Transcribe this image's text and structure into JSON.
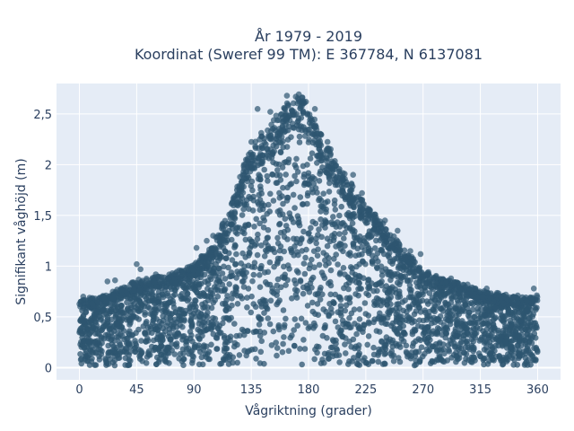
{
  "chart_data": {
    "type": "scatter",
    "title_line1": "År 1979 - 2019",
    "title_line2": "Koordinat (Sweref 99 TM): E 367784, N 6137081",
    "xlabel": "Vågriktning (grader)",
    "ylabel": "Signifikant våghöjd (m)",
    "xlim": [
      -18,
      378
    ],
    "ylim": [
      -0.12,
      2.8
    ],
    "x_ticks": [
      0,
      45,
      90,
      135,
      180,
      225,
      270,
      315,
      360
    ],
    "x_tick_labels": [
      "0",
      "45",
      "90",
      "135",
      "180",
      "225",
      "270",
      "315",
      "360"
    ],
    "y_ticks": [
      0,
      0.5,
      1,
      1.5,
      2,
      2.5
    ],
    "y_tick_labels": [
      "0",
      "0,5",
      "1",
      "1,5",
      "2",
      "2,5"
    ],
    "grid": true,
    "colors": {
      "marker": "#2e5570",
      "background": "#e5ecf6",
      "grid": "#ffffff"
    },
    "envelope": {
      "description": "upper bound of significant wave height by direction",
      "x": [
        0,
        20,
        45,
        70,
        90,
        105,
        120,
        135,
        150,
        165,
        175,
        180,
        190,
        205,
        225,
        245,
        270,
        290,
        315,
        340,
        360
      ],
      "y_max": [
        0.65,
        0.7,
        0.85,
        0.9,
        1.0,
        1.2,
        1.6,
        2.2,
        2.35,
        2.65,
        2.65,
        2.5,
        2.3,
        1.95,
        1.6,
        1.3,
        0.95,
        0.85,
        0.75,
        0.7,
        0.7
      ],
      "y_min": 0.02
    },
    "outliers": [
      {
        "x": 163,
        "y": 2.68
      },
      {
        "x": 170,
        "y": 2.67
      },
      {
        "x": 175,
        "y": 2.66
      },
      {
        "x": 178,
        "y": 2.62
      },
      {
        "x": 150,
        "y": 2.52
      },
      {
        "x": 140,
        "y": 2.55
      },
      {
        "x": 185,
        "y": 2.55
      },
      {
        "x": 165,
        "y": 2.48
      },
      {
        "x": 45,
        "y": 1.02
      },
      {
        "x": 48,
        "y": 0.97
      },
      {
        "x": 22,
        "y": 0.85
      },
      {
        "x": 28,
        "y": 0.86
      },
      {
        "x": 60,
        "y": 0.92
      },
      {
        "x": 73,
        "y": 0.93
      },
      {
        "x": 92,
        "y": 1.18
      },
      {
        "x": 100,
        "y": 1.25
      },
      {
        "x": 105,
        "y": 1.3
      },
      {
        "x": 215,
        "y": 1.9
      },
      {
        "x": 222,
        "y": 1.72
      },
      {
        "x": 240,
        "y": 1.45
      },
      {
        "x": 250,
        "y": 1.35
      },
      {
        "x": 260,
        "y": 1.15
      },
      {
        "x": 268,
        "y": 1.12
      },
      {
        "x": 292,
        "y": 0.88
      },
      {
        "x": 305,
        "y": 0.82
      },
      {
        "x": 320,
        "y": 0.78
      },
      {
        "x": 335,
        "y": 0.72
      },
      {
        "x": 357,
        "y": 0.78
      },
      {
        "x": 3,
        "y": 0.7
      },
      {
        "x": 8,
        "y": 0.69
      }
    ]
  }
}
